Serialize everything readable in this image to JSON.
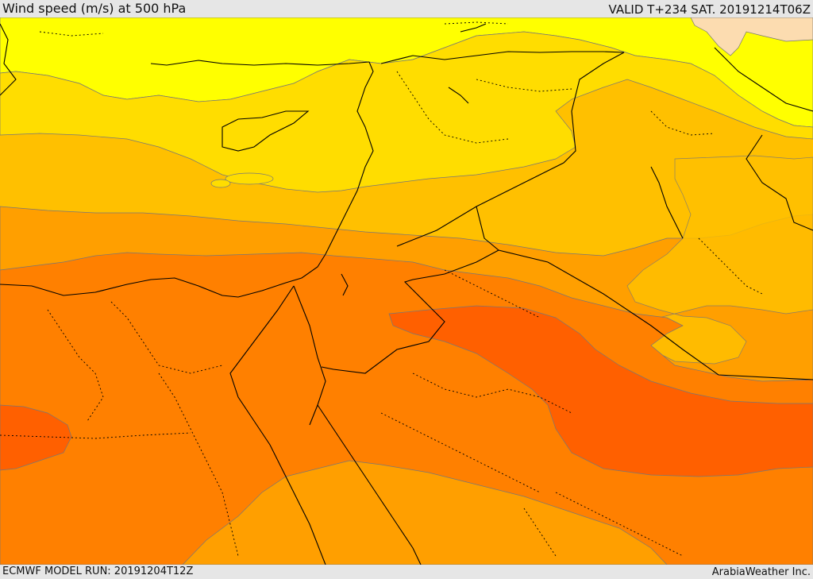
{
  "header": {
    "title": "Wind speed (m/s) at 500 hPa",
    "valid_time": "VALID T+234 SAT. 20191214T06Z"
  },
  "footer": {
    "model_run": "ECMWF MODEL RUN: 20191204T12Z",
    "credit": "ArabiaWeather Inc."
  },
  "colors": {
    "band_lightest": "#fcdcb0",
    "band_yellow": "#ffff00",
    "band_gold": "#ffdd00",
    "band_amber": "#ffc000",
    "band_light_orange": "#ff9f00",
    "band_orange": "#ff8000",
    "band_dark_orange": "#ff6000",
    "coastline": "#000000",
    "border_dotted": "#000000"
  }
}
